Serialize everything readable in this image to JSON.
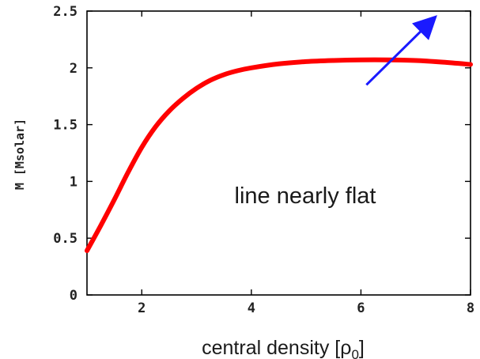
{
  "chart_data": {
    "type": "line",
    "xlabel": "central density [ρ0]",
    "xlabel_main": "central density [ρ",
    "xlabel_sub": "0",
    "xlabel_end": "]",
    "ylabel": "M [Msolar]",
    "xlim": [
      1,
      8
    ],
    "ylim": [
      0,
      2.5
    ],
    "xticks": [
      2,
      4,
      6,
      8
    ],
    "xtick_labels": [
      "2",
      "4",
      "6",
      "8"
    ],
    "yticks": [
      0,
      0.5,
      1,
      1.5,
      2,
      2.5
    ],
    "ytick_labels": [
      "0",
      "0.5",
      "1",
      "1.5",
      "2",
      "2.5"
    ],
    "grid": false,
    "series": [
      {
        "color": "#ff0000",
        "x": [
          1.0,
          1.25,
          1.5,
          1.75,
          2.0,
          2.25,
          2.5,
          2.75,
          3.0,
          3.25,
          3.5,
          3.75,
          4.0,
          4.5,
          5.0,
          5.5,
          6.0,
          6.5,
          7.0,
          7.5,
          8.0
        ],
        "y": [
          0.39,
          0.61,
          0.84,
          1.08,
          1.3,
          1.48,
          1.62,
          1.73,
          1.82,
          1.89,
          1.94,
          1.975,
          2.0,
          2.035,
          2.055,
          2.065,
          2.07,
          2.07,
          2.065,
          2.05,
          2.03
        ]
      }
    ],
    "annotations": [
      {
        "text": "line nearly flat",
        "arrow_color": "#1a1aff",
        "arrow_from": [
          6.1,
          1.85
        ],
        "arrow_to": [
          7.3,
          2.42
        ]
      }
    ]
  }
}
